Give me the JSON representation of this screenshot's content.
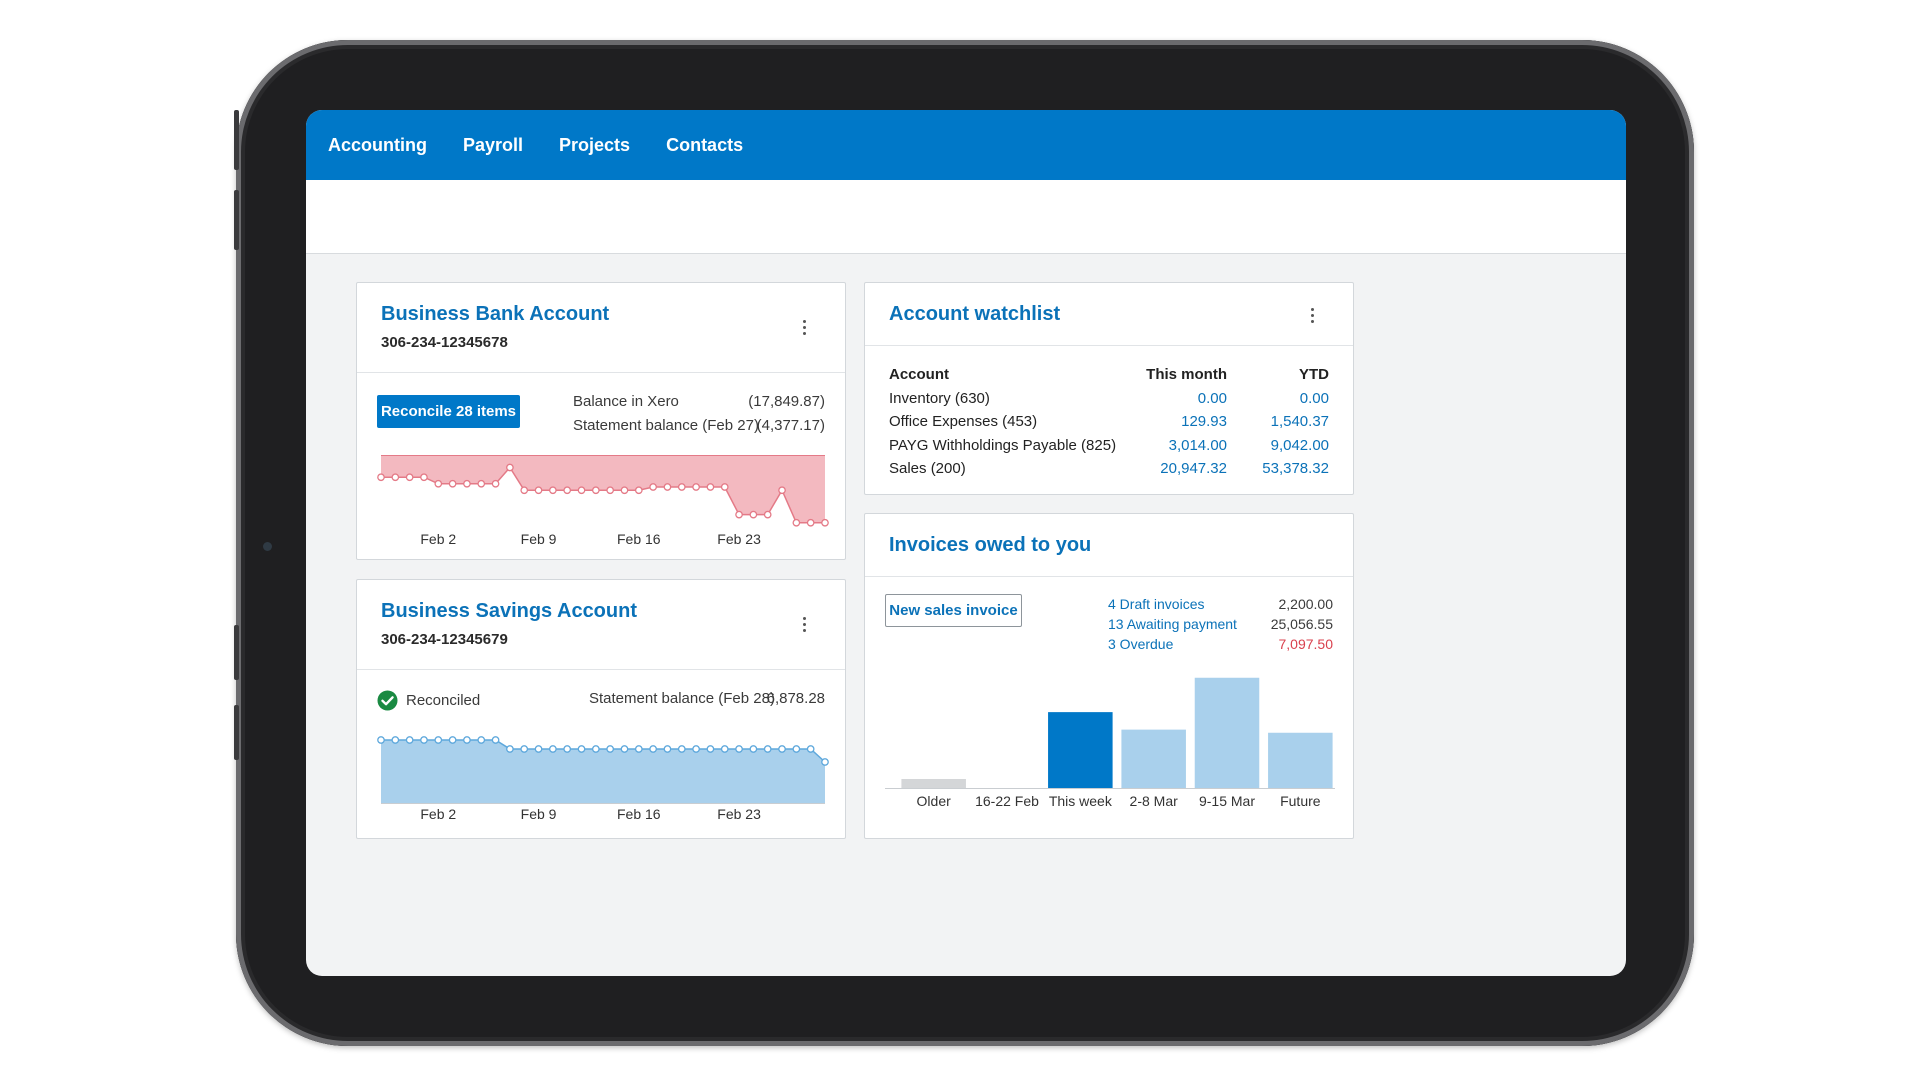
{
  "nav": {
    "items": [
      {
        "label": "Accounting"
      },
      {
        "label": "Payroll"
      },
      {
        "label": "Projects"
      },
      {
        "label": "Contacts"
      }
    ]
  },
  "bank_account": {
    "title": "Business Bank Account",
    "number": "306-234-12345678",
    "reconcile_label": "Reconcile 28 items",
    "balance_xero_label": "Balance in Xero",
    "balance_xero_value": "(17,849.87)",
    "statement_label": "Statement balance (Feb 27)",
    "statement_value": "(4,377.17)",
    "chart_color": "#f3b9c0",
    "line_color": "#e47a87"
  },
  "savings_account": {
    "title": "Business Savings Account",
    "number": "306-234-12345679",
    "reconciled_label": "Reconciled",
    "statement_label": "Statement balance (Feb 28)",
    "statement_value": "6,878.28",
    "chart_color": "#a9d0ec",
    "line_color": "#5ea8dc"
  },
  "watchlist": {
    "title": "Account watchlist",
    "headers": {
      "account": "Account",
      "month": "This month",
      "ytd": "YTD"
    },
    "rows": [
      {
        "account": "Inventory (630)",
        "month": "0.00",
        "ytd": "0.00"
      },
      {
        "account": "Office Expenses (453)",
        "month": "129.93",
        "ytd": "1,540.37"
      },
      {
        "account": "PAYG Withholdings Payable (825)",
        "month": "3,014.00",
        "ytd": "9,042.00"
      },
      {
        "account": "Sales (200)",
        "month": "20,947.32",
        "ytd": "53,378.32"
      }
    ]
  },
  "invoices": {
    "title": "Invoices owed to you",
    "new_invoice_label": "New sales invoice",
    "summary": [
      {
        "label": "4 Draft invoices",
        "value": "2,200.00"
      },
      {
        "label": "13 Awaiting payment",
        "value": "25,056.55"
      },
      {
        "label": "3 Overdue",
        "value": "7,097.50"
      }
    ],
    "overdue_color": "#d9414e"
  },
  "chart_data": [
    {
      "type": "area",
      "series": [
        {
          "values": [
            1.6,
            1.6,
            1.6,
            1.6,
            1.2,
            1.2,
            1.2,
            1.2,
            1.2,
            2.2,
            0.8,
            0.8,
            0.8,
            0.8,
            0.8,
            0.8,
            0.8,
            0.8,
            0.8,
            1.0,
            1.0,
            1.0,
            1.0,
            1.0,
            1.0,
            -0.7,
            -0.7,
            -0.7,
            0.8,
            -1.2,
            -1.2,
            -1.2
          ]
        }
      ],
      "x_ticks": [
        "Feb 2",
        "Feb 9",
        "Feb 16",
        "Feb 23"
      ],
      "x_tick_index": [
        4,
        11,
        18,
        25
      ]
    },
    {
      "type": "area",
      "series": [
        {
          "values": [
            6.0,
            6.0,
            6.0,
            6.0,
            6.0,
            6.0,
            6.0,
            6.0,
            6.0,
            5.1,
            5.1,
            5.1,
            5.1,
            5.1,
            5.1,
            5.1,
            5.1,
            5.1,
            5.1,
            5.1,
            5.1,
            5.1,
            5.1,
            5.1,
            5.1,
            5.1,
            5.1,
            5.1,
            5.1,
            5.1,
            5.1,
            3.8
          ]
        }
      ],
      "x_ticks": [
        "Feb 2",
        "Feb 9",
        "Feb 16",
        "Feb 23"
      ],
      "x_tick_index": [
        4,
        11,
        18,
        25
      ]
    },
    {
      "type": "bar",
      "categories": [
        "Older",
        "16-22 Feb",
        "This week",
        "2-8 Mar",
        "9-15 Mar",
        "Future"
      ],
      "values": [
        800,
        0,
        6150,
        4750,
        8900,
        4500
      ],
      "highlight_index": 2,
      "colors": {
        "default": "#a9d0ec",
        "highlight": "#0078c8",
        "older": "#d4d6d8"
      }
    }
  ]
}
